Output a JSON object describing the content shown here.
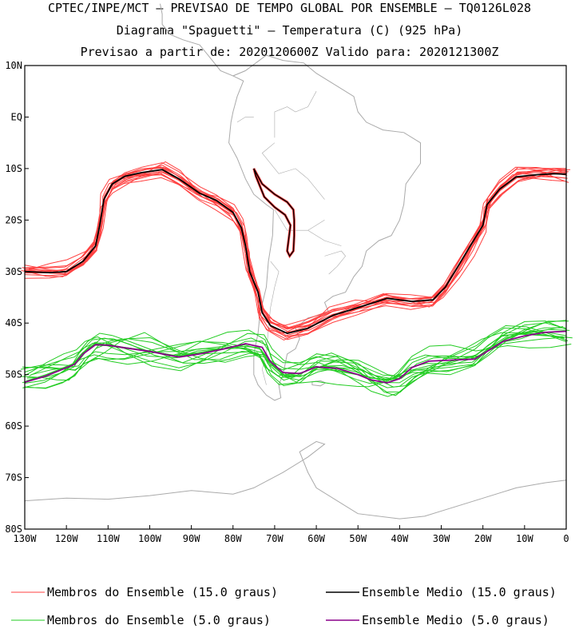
{
  "header": {
    "line1": "CPTEC/INPE/MCT – PREVISAO DE TEMPO GLOBAL POR ENSEMBLE – TQ0126L028",
    "line2": "Diagrama \"Spaguetti\" – Temperatura (C) (925 hPa)",
    "line3": "Previsao a partir de: 2020120600Z  Valido para: 2020121300Z"
  },
  "map": {
    "lon_range": [
      -130,
      0
    ],
    "lat_range": [
      -80,
      10
    ],
    "lat_labels": [
      "10N",
      "EQ",
      "10S",
      "20S",
      "30S",
      "40S",
      "50S",
      "60S",
      "70S",
      "80S"
    ],
    "lon_labels": [
      "130W",
      "120W",
      "110W",
      "100W",
      "90W",
      "80W",
      "70W",
      "60W",
      "50W",
      "40W",
      "30W",
      "20W",
      "10W",
      "0"
    ],
    "land_color": "#aaaaaa"
  },
  "chart_data": {
    "type": "line",
    "x_unit": "longitude (deg)",
    "y_unit": "latitude (deg)",
    "series": [
      {
        "name": "Ensemble Medio (15.0 graus)",
        "color": "#000000",
        "points": [
          [
            -130,
            -30
          ],
          [
            -124,
            -30.2
          ],
          [
            -120,
            -30
          ],
          [
            -116,
            -28
          ],
          [
            -113,
            -25
          ],
          [
            -112,
            -21
          ],
          [
            -111,
            -16
          ],
          [
            -109,
            -13
          ],
          [
            -106,
            -11.5
          ],
          [
            -102,
            -10.8
          ],
          [
            -97,
            -10.2
          ],
          [
            -93,
            -12
          ],
          [
            -88,
            -14.8
          ],
          [
            -84,
            -16.2
          ],
          [
            -80,
            -18.5
          ],
          [
            -78,
            -21.5
          ],
          [
            -77,
            -25
          ],
          [
            -76,
            -30
          ],
          [
            -74,
            -34
          ],
          [
            -73,
            -38
          ],
          [
            -71,
            -40.5
          ],
          [
            -67,
            -42
          ],
          [
            -62,
            -41
          ],
          [
            -56,
            -38.5
          ],
          [
            -50,
            -37
          ],
          [
            -43,
            -35.2
          ],
          [
            -37,
            -35.8
          ],
          [
            -32,
            -35.5
          ],
          [
            -29,
            -33
          ],
          [
            -26,
            -29
          ],
          [
            -23,
            -25
          ],
          [
            -20,
            -21
          ],
          [
            -19,
            -17
          ],
          [
            -16,
            -14
          ],
          [
            -12,
            -11.6
          ],
          [
            -7,
            -11.2
          ],
          [
            -3,
            -11
          ],
          [
            0,
            -11.1
          ]
        ]
      },
      {
        "name": "Ensemble Medio (5.0 graus)",
        "color": "#8b008b",
        "points": [
          [
            -130,
            -51.5
          ],
          [
            -125,
            -50.3
          ],
          [
            -121,
            -49
          ],
          [
            -118,
            -48
          ],
          [
            -116,
            -46
          ],
          [
            -113,
            -44.2
          ],
          [
            -110,
            -44.3
          ],
          [
            -106,
            -44.8
          ],
          [
            -100,
            -45.5
          ],
          [
            -93,
            -46.6
          ],
          [
            -88,
            -46
          ],
          [
            -82,
            -45
          ],
          [
            -77,
            -44
          ],
          [
            -73,
            -44.7
          ],
          [
            -71,
            -47.5
          ],
          [
            -68,
            -49.6
          ],
          [
            -64,
            -49.8
          ],
          [
            -60,
            -48.5
          ],
          [
            -55,
            -48.8
          ],
          [
            -50,
            -50
          ],
          [
            -47,
            -51
          ],
          [
            -43,
            -51.6
          ],
          [
            -40,
            -50.8
          ],
          [
            -37,
            -48.6
          ],
          [
            -33,
            -47.4
          ],
          [
            -28,
            -47.2
          ],
          [
            -22,
            -47
          ],
          [
            -19,
            -45.5
          ],
          [
            -15,
            -43.5
          ],
          [
            -10,
            -42.5
          ],
          [
            -5,
            -41.8
          ],
          [
            0,
            -41.6
          ]
        ]
      }
    ],
    "ensemble_members": [
      {
        "name": "Membros do Ensemble (15.0 graus)",
        "color": "#ff4040",
        "count": 15
      },
      {
        "name": "Membros do Ensemble (5.0 graus)",
        "color": "#22cc22",
        "count": 15
      }
    ],
    "andes_contour": {
      "color": "#ff4040",
      "points": [
        [
          -75,
          -10
        ],
        [
          -73,
          -13
        ],
        [
          -70,
          -15
        ],
        [
          -67,
          -16.5
        ],
        [
          -65.5,
          -18
        ],
        [
          -65.3,
          -20
        ],
        [
          -65.3,
          -23
        ],
        [
          -65.5,
          -26
        ],
        [
          -66.4,
          -27
        ],
        [
          -67,
          -26
        ],
        [
          -66.2,
          -21
        ],
        [
          -67.5,
          -19
        ],
        [
          -70,
          -17.5
        ],
        [
          -72.5,
          -15.5
        ],
        [
          -74.5,
          -11.5
        ],
        [
          -75,
          -10
        ]
      ]
    }
  },
  "legend": {
    "items": [
      {
        "label": "Membros do Ensemble (15.0 graus)",
        "color": "#ff4040"
      },
      {
        "label": "Ensemble Medio (15.0 graus)",
        "color": "#000000"
      },
      {
        "label": "Membros do Ensemble (5.0 graus)",
        "color": "#22cc22"
      },
      {
        "label": "Ensemble Medio (5.0 graus)",
        "color": "#8b008b"
      }
    ]
  }
}
